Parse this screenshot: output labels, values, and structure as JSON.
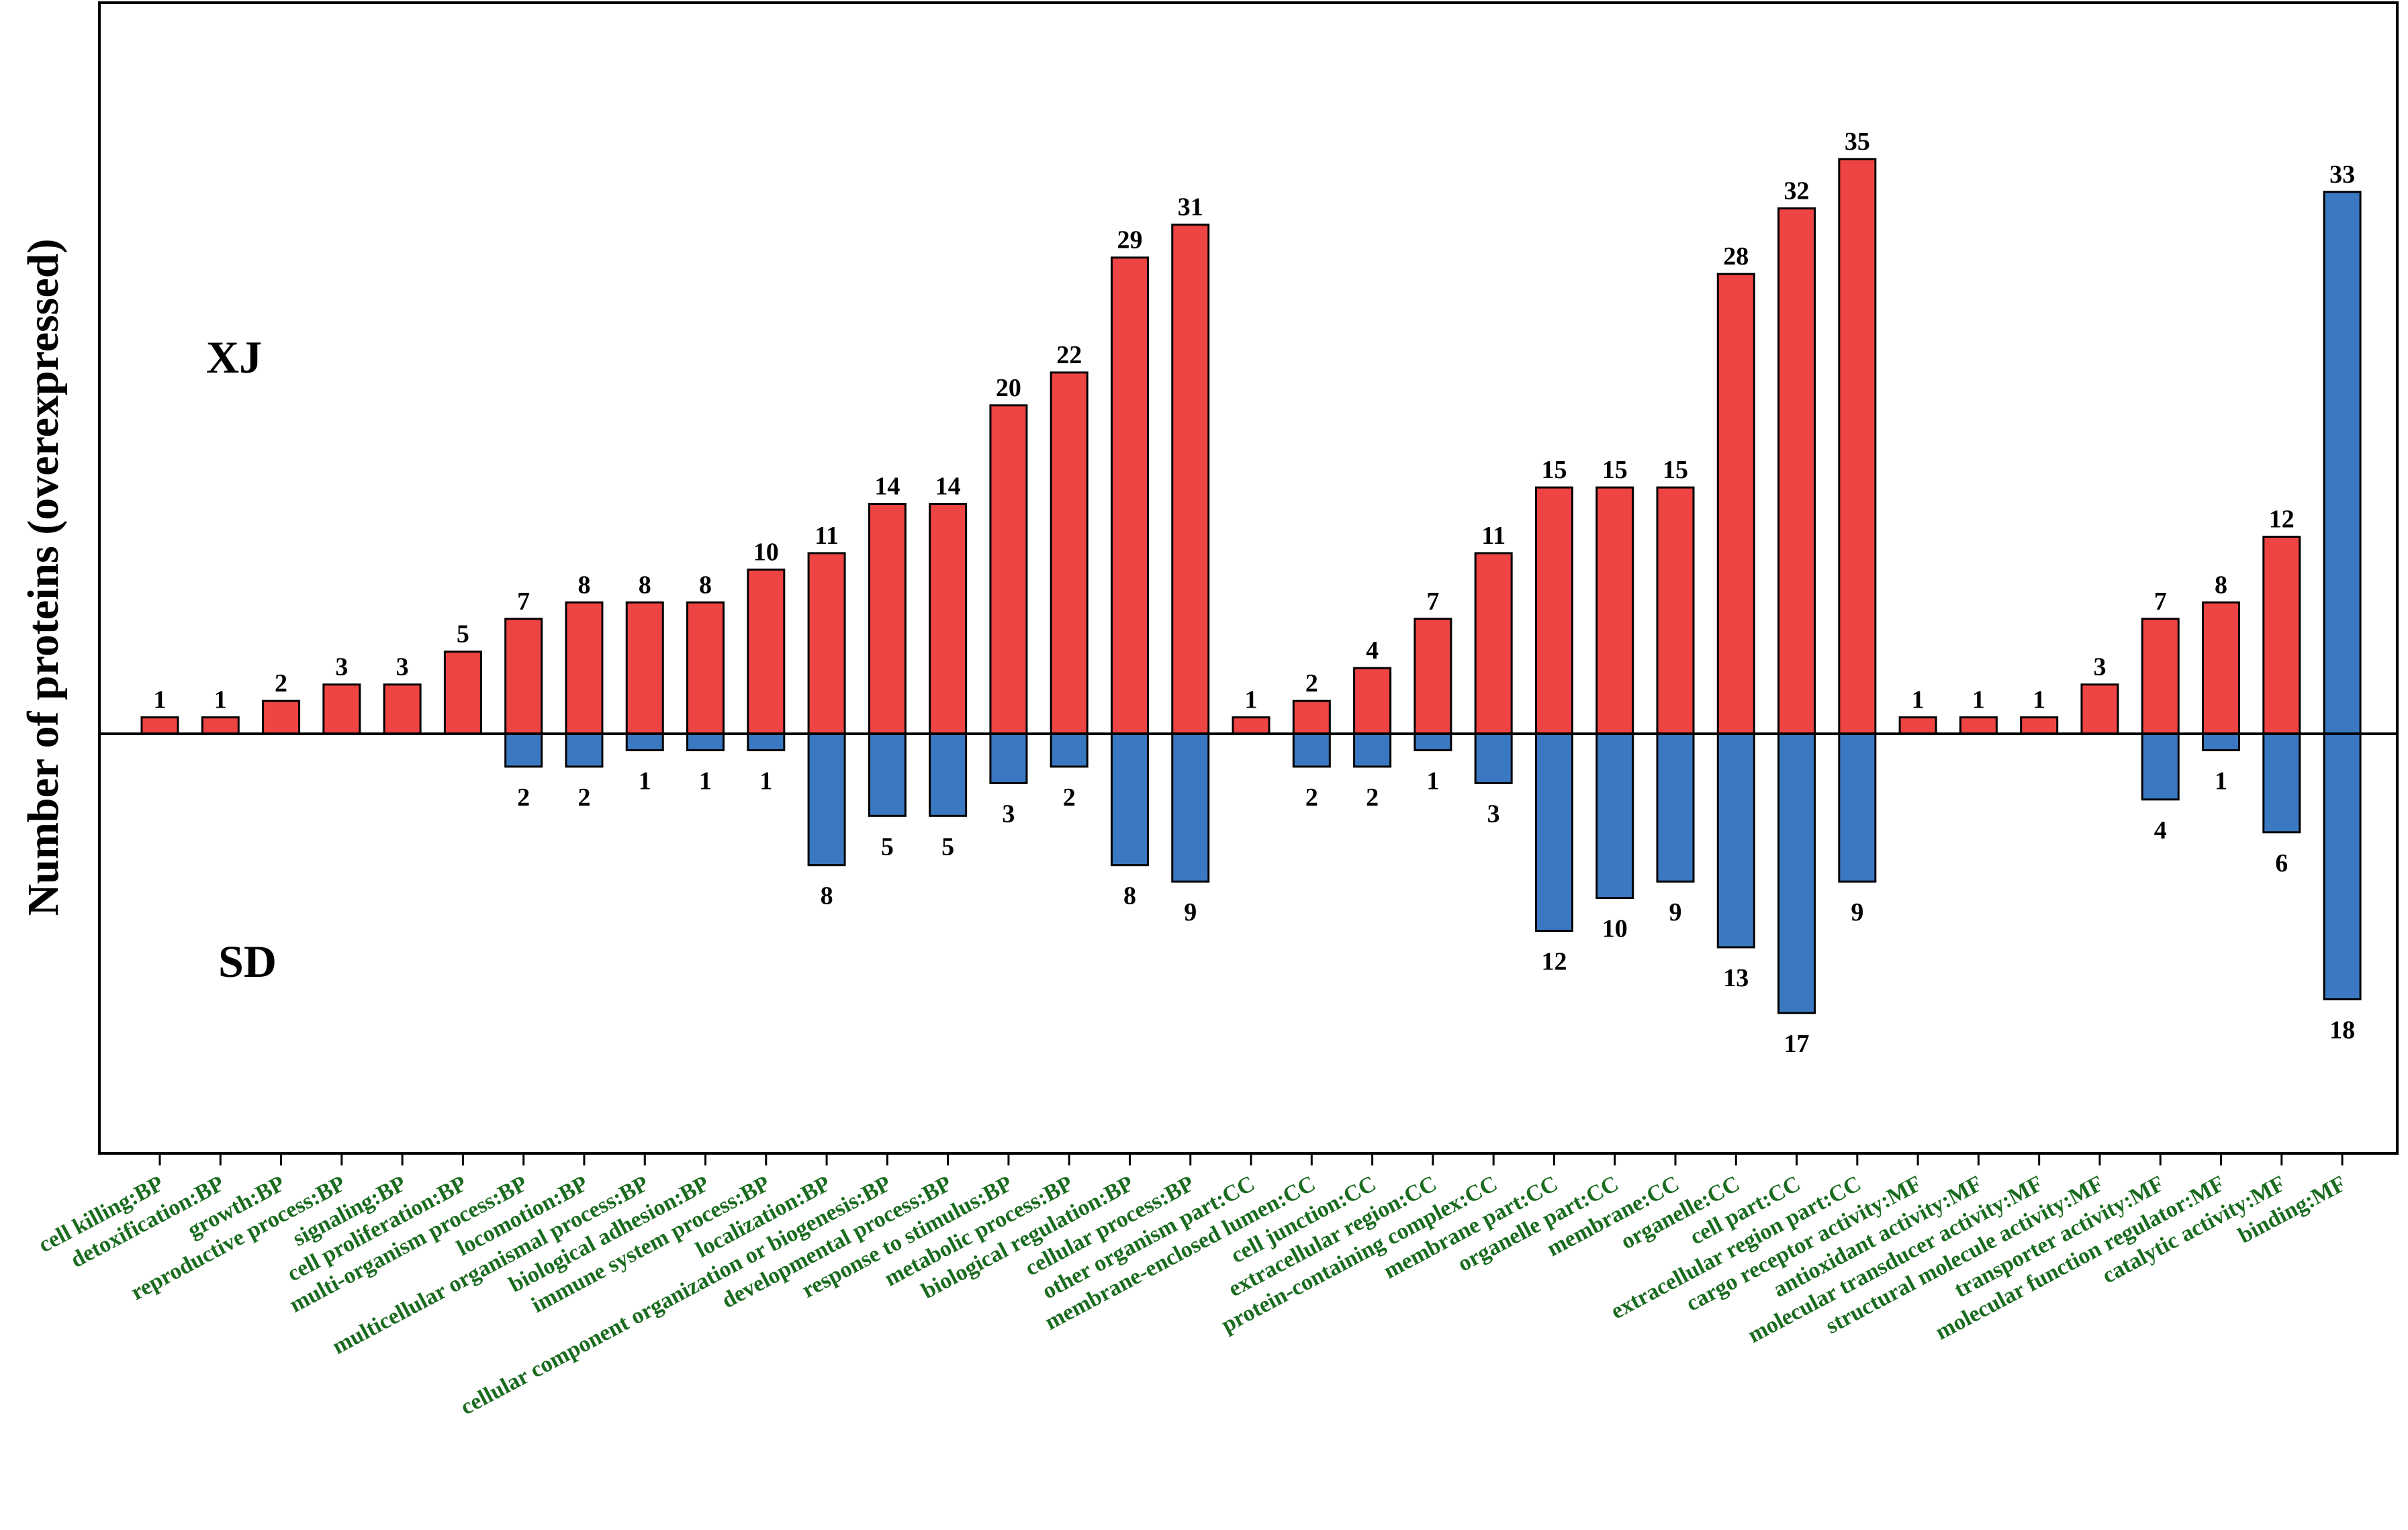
{
  "chart_data": {
    "type": "bar",
    "ylabel": "Number of proteins (overexpressed)",
    "group_labels": {
      "top": "XJ",
      "bottom": "SD"
    },
    "colors": {
      "XJ": "#ee4444",
      "SD": "#3b78c2",
      "category_text": "#1a6b1f"
    },
    "grid": false,
    "categories": [
      "cell killing:BP",
      "detoxification:BP",
      "growth:BP",
      "reproductive process:BP",
      "signaling:BP",
      "cell proliferation:BP",
      "multi-organism process:BP",
      "locomotion:BP",
      "multicellular organismal process:BP",
      "biological adhesion:BP",
      "immune system process:BP",
      "localization:BP",
      "cellular component organization or biogenesis:BP",
      "developmental process:BP",
      "response to stimulus:BP",
      "metabolic process:BP",
      "biological regulation:BP",
      "cellular process:BP",
      "other organism part:CC",
      "membrane-enclosed lumen:CC",
      "cell junction:CC",
      "extracellular region:CC",
      "protein-containing complex:CC",
      "membrane part:CC",
      "organelle part:CC",
      "membrane:CC",
      "organelle:CC",
      "cell part:CC",
      "extracellular region part:CC",
      "cargo receptor activity:MF",
      "antioxidant activity:MF",
      "molecular transducer activity:MF",
      "structural molecule activity:MF",
      "transporter activity:MF",
      "molecular function regulator:MF",
      "catalytic activity:MF",
      "binding:MF"
    ],
    "series": [
      {
        "name": "XJ",
        "values": [
          1,
          1,
          2,
          3,
          3,
          5,
          7,
          8,
          8,
          8,
          10,
          11,
          14,
          14,
          20,
          22,
          29,
          31,
          1,
          2,
          4,
          7,
          11,
          15,
          15,
          15,
          28,
          32,
          35,
          1,
          1,
          1,
          3,
          7,
          8,
          12,
          null
        ]
      },
      {
        "name": "SD",
        "values": [
          null,
          null,
          null,
          null,
          null,
          null,
          2,
          2,
          1,
          1,
          1,
          8,
          5,
          5,
          3,
          2,
          8,
          9,
          null,
          2,
          2,
          1,
          3,
          12,
          10,
          9,
          13,
          17,
          9,
          null,
          null,
          null,
          null,
          4,
          1,
          6,
          null
        ]
      }
    ],
    "special_bars": [
      {
        "category": "binding:MF",
        "value": 33,
        "color": "#3b78c2",
        "note_value_label": "33",
        "bottom_label": "18"
      }
    ]
  }
}
